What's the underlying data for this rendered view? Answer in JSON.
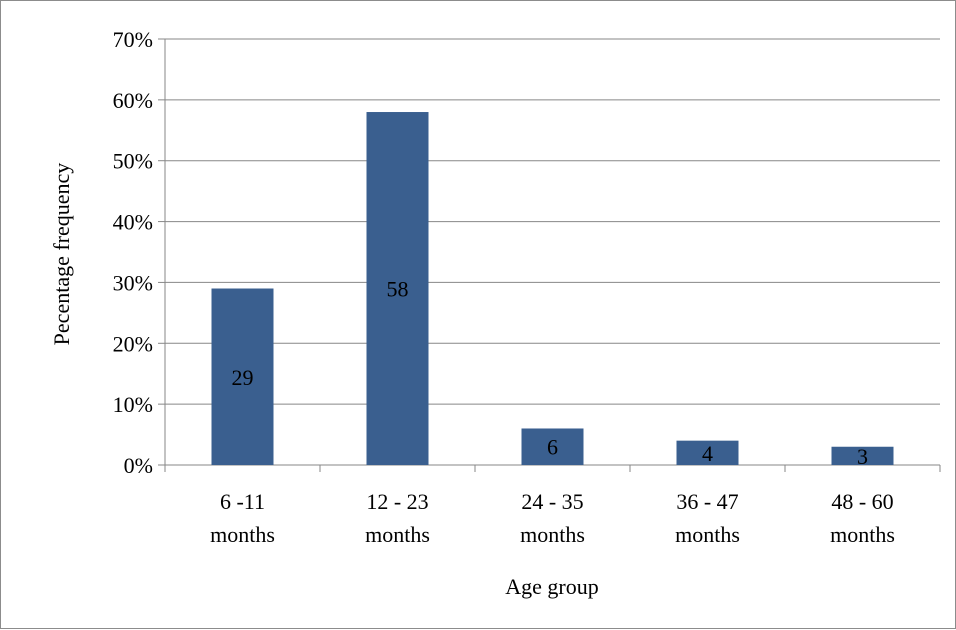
{
  "chart_data": {
    "type": "bar",
    "categories": [
      [
        "6 -11",
        "months"
      ],
      [
        "12 - 23",
        "months"
      ],
      [
        "24 - 35",
        "months"
      ],
      [
        "36 - 47",
        "months"
      ],
      [
        "48 - 60",
        "months"
      ]
    ],
    "values": [
      29,
      58,
      6,
      4,
      3
    ],
    "data_labels": [
      "29",
      "58",
      "6",
      "4",
      "3"
    ],
    "title": "",
    "xlabel": "Age group",
    "ylabel": "Pecentage frequency",
    "ylim": [
      0,
      70
    ],
    "yticks": [
      0,
      10,
      20,
      30,
      40,
      50,
      60,
      70
    ],
    "ytick_labels": [
      "0%",
      "10%",
      "20%",
      "30%",
      "40%",
      "50%",
      "60%",
      "70%"
    ],
    "grid": true,
    "legend": "none",
    "bar_color": "#3A5F8F",
    "grid_color": "#878787"
  }
}
